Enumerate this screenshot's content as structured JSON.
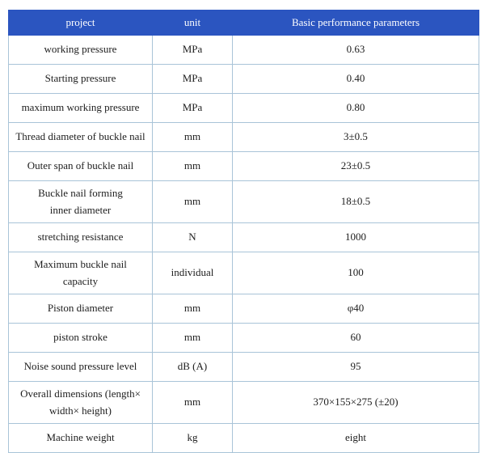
{
  "colors": {
    "header_background": "#2b55c0",
    "header_text": "#ffffff",
    "border": "#a9c4d8",
    "body_text": "#1d1d1d",
    "page_background": "#ffffff"
  },
  "table": {
    "headers": {
      "project": "project",
      "unit": "unit",
      "value": "Basic performance parameters"
    },
    "rows": [
      {
        "project": "working pressure",
        "unit": "MPa",
        "value": "0.63"
      },
      {
        "project": "Starting pressure",
        "unit": "MPa",
        "value": "0.40"
      },
      {
        "project": "maximum working pressure",
        "unit": "MPa",
        "value": "0.80"
      },
      {
        "project": "Thread diameter of buckle nail",
        "unit": "mm",
        "value": "3±0.5"
      },
      {
        "project": "Outer span of buckle nail",
        "unit": "mm",
        "value": "23±0.5"
      },
      {
        "project": "Buckle nail forming\ninner diameter",
        "unit": "mm",
        "value": "18±0.5"
      },
      {
        "project": "stretching resistance",
        "unit": "N",
        "value": "1000"
      },
      {
        "project": "Maximum buckle nail\ncapacity",
        "unit": "individual",
        "value": "100"
      },
      {
        "project": "Piston diameter",
        "unit": "mm",
        "value": "φ40"
      },
      {
        "project": "piston stroke",
        "unit": "mm",
        "value": "60"
      },
      {
        "project": "Noise sound pressure level",
        "unit": "dB (A)",
        "value": "95"
      },
      {
        "project": "Overall dimensions (length×\nwidth× height)",
        "unit": "mm",
        "value": "370×155×275 (±20)"
      },
      {
        "project": "Machine weight",
        "unit": "kg",
        "value": "eight"
      }
    ]
  }
}
